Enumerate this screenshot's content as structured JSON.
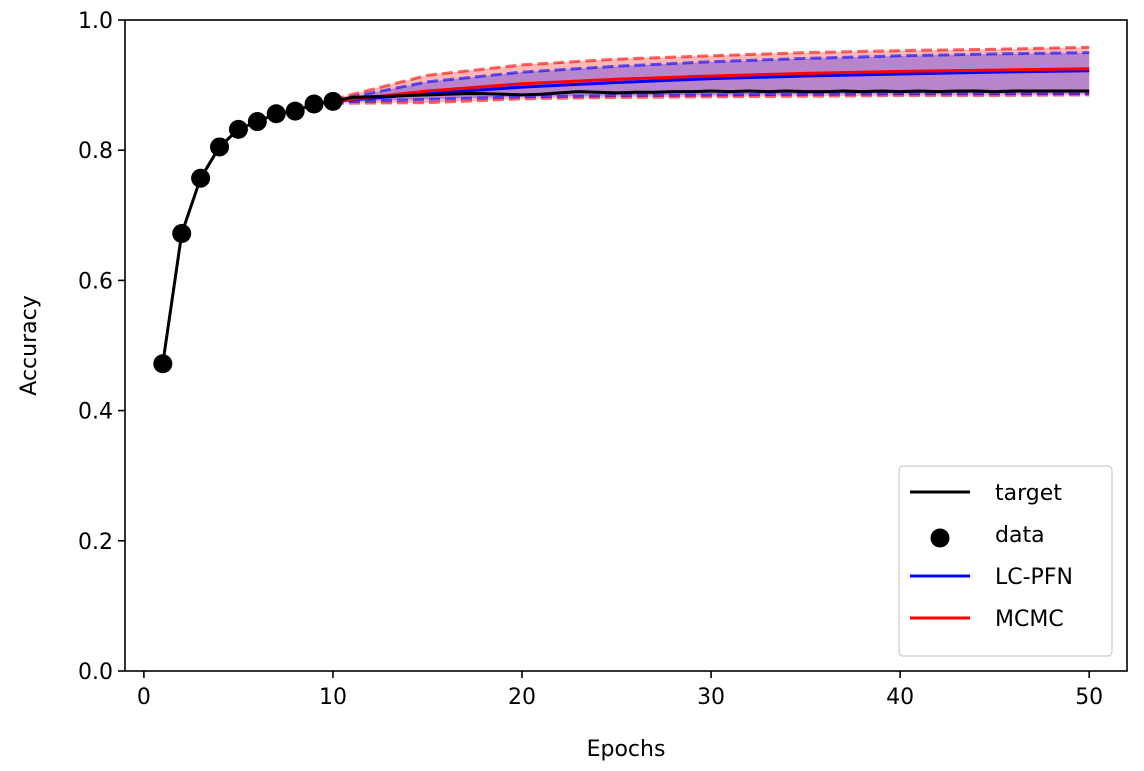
{
  "chart_data": {
    "type": "line",
    "title": "",
    "xlabel": "Epochs",
    "ylabel": "Accuracy",
    "xlim": [
      -1,
      52
    ],
    "ylim": [
      0.0,
      1.0
    ],
    "xticks": [
      0,
      10,
      20,
      30,
      40,
      50
    ],
    "yticks": [
      0.0,
      0.2,
      0.4,
      0.6,
      0.8,
      1.0
    ],
    "xtick_labels": [
      "0",
      "10",
      "20",
      "30",
      "40",
      "50"
    ],
    "ytick_labels": [
      "0.0",
      "0.2",
      "0.4",
      "0.6",
      "0.8",
      "1.0"
    ],
    "grid": false,
    "legend_position": "lower-right",
    "colors": {
      "target": "#000000",
      "data": "#000000",
      "lcpfn": "#0000ff",
      "mcmc": "#ff0000",
      "band_overlap": "#8b4a9c"
    },
    "legend": [
      {
        "key": "target",
        "label": "target",
        "marker": "line"
      },
      {
        "key": "data",
        "label": "data",
        "marker": "dot"
      },
      {
        "key": "lcpfn",
        "label": "LC-PFN",
        "marker": "line"
      },
      {
        "key": "mcmc",
        "label": "MCMC",
        "marker": "line"
      }
    ],
    "series": [
      {
        "name": "target",
        "key": "target",
        "x": [
          1,
          2,
          3,
          4,
          5,
          6,
          7,
          8,
          9,
          10,
          11,
          12,
          13,
          14,
          15,
          16,
          17,
          18,
          19,
          20,
          21,
          22,
          23,
          24,
          25,
          26,
          27,
          28,
          29,
          30,
          31,
          32,
          33,
          34,
          35,
          36,
          37,
          38,
          39,
          40,
          41,
          42,
          43,
          44,
          45,
          46,
          47,
          48,
          49,
          50
        ],
        "y": [
          0.472,
          0.672,
          0.757,
          0.805,
          0.832,
          0.844,
          0.856,
          0.86,
          0.871,
          0.875,
          0.881,
          0.882,
          0.883,
          0.884,
          0.885,
          0.886,
          0.887,
          0.887,
          0.886,
          0.885,
          0.886,
          0.888,
          0.89,
          0.889,
          0.888,
          0.889,
          0.889,
          0.89,
          0.89,
          0.891,
          0.89,
          0.891,
          0.89,
          0.891,
          0.89,
          0.89,
          0.891,
          0.89,
          0.891,
          0.89,
          0.891,
          0.89,
          0.891,
          0.891,
          0.89,
          0.891,
          0.891,
          0.891,
          0.891,
          0.891
        ]
      },
      {
        "name": "data",
        "key": "data",
        "x": [
          1,
          2,
          3,
          4,
          5,
          6,
          7,
          8,
          9,
          10
        ],
        "y": [
          0.472,
          0.672,
          0.757,
          0.805,
          0.832,
          0.844,
          0.856,
          0.86,
          0.871,
          0.875
        ]
      },
      {
        "name": "LC-PFN",
        "key": "lcpfn",
        "x": [
          10,
          15,
          20,
          25,
          30,
          35,
          40,
          45,
          50
        ],
        "y": [
          0.875,
          0.887,
          0.897,
          0.904,
          0.91,
          0.914,
          0.917,
          0.92,
          0.922
        ],
        "upper": [
          0.876,
          0.905,
          0.92,
          0.929,
          0.936,
          0.941,
          0.945,
          0.948,
          0.95
        ],
        "lower": [
          0.874,
          0.878,
          0.882,
          0.884,
          0.885,
          0.886,
          0.887,
          0.887,
          0.887
        ]
      },
      {
        "name": "MCMC",
        "key": "mcmc",
        "x": [
          10,
          15,
          20,
          25,
          30,
          35,
          40,
          45,
          50
        ],
        "y": [
          0.875,
          0.891,
          0.902,
          0.909,
          0.914,
          0.918,
          0.921,
          0.923,
          0.925
        ],
        "upper": [
          0.878,
          0.915,
          0.931,
          0.94,
          0.945,
          0.95,
          0.953,
          0.955,
          0.958
        ],
        "lower": [
          0.872,
          0.873,
          0.879,
          0.881,
          0.882,
          0.883,
          0.884,
          0.884,
          0.885
        ]
      }
    ]
  }
}
